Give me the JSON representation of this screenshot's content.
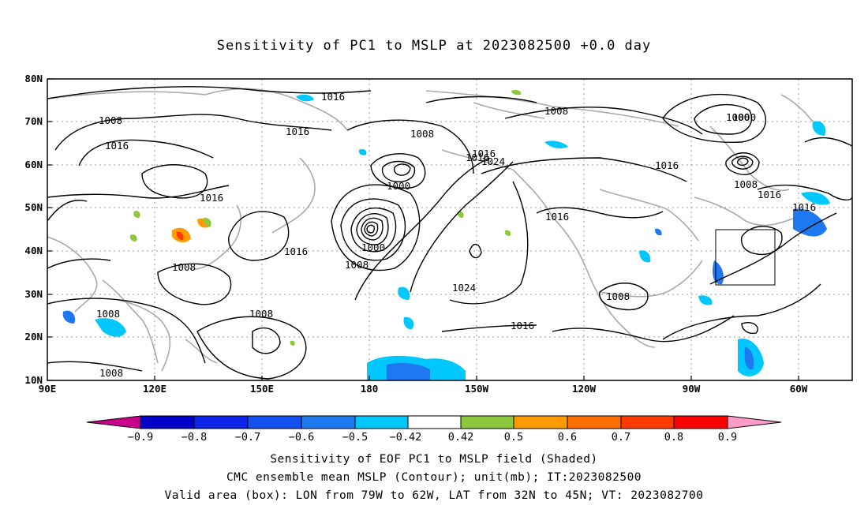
{
  "title": "Sensitivity of PC1 to MSLP at 2023082500 +0.0 day",
  "lat_labels": [
    "80N",
    "70N",
    "60N",
    "50N",
    "40N",
    "30N",
    "20N",
    "10N"
  ],
  "lon_labels": [
    "90E",
    "120E",
    "150E",
    "180",
    "150W",
    "120W",
    "90W",
    "60W"
  ],
  "contour_labels": [
    "1016",
    "1008",
    "1016",
    "1016",
    "1008",
    "1000",
    "1016",
    "1024",
    "1000",
    "1016",
    "1016",
    "1000",
    "1008",
    "1016",
    "1016",
    "1016",
    "1008",
    "1016",
    "1016",
    "1008",
    "1000",
    "1008",
    "1024",
    "1008",
    "1016",
    "1008",
    "1008",
    "1008"
  ],
  "colorbar": {
    "labels": [
      "−0.9",
      "−0.8",
      "−0.7",
      "−0.6",
      "−0.5",
      "−0.42",
      "0.42",
      "0.5",
      "0.6",
      "0.7",
      "0.8",
      "0.9"
    ],
    "colors": [
      "#c8008c",
      "#0000c8",
      "#0a23e6",
      "#1450f0",
      "#1e78f0",
      "#00c8ff",
      "#ffffff",
      "#8cc83c",
      "#ff9b00",
      "#ff6e00",
      "#ff3c00",
      "#ff0000",
      "#ff9bc8"
    ]
  },
  "colors": {
    "contour": "#000000",
    "coast": "#aaaaaa",
    "grid": "#999999",
    "negative_shading": "#1e78f0",
    "positive_shading": "#8cc83c"
  },
  "captions": [
    "Sensitivity of EOF PC1 to MSLP field (Shaded)",
    "CMC ensemble mean MSLP (Contour); unit(mb); IT:2023082500",
    "Valid area (box): LON from 79W to 62W, LAT from 32N to 45N; VT: 2023082700"
  ]
}
